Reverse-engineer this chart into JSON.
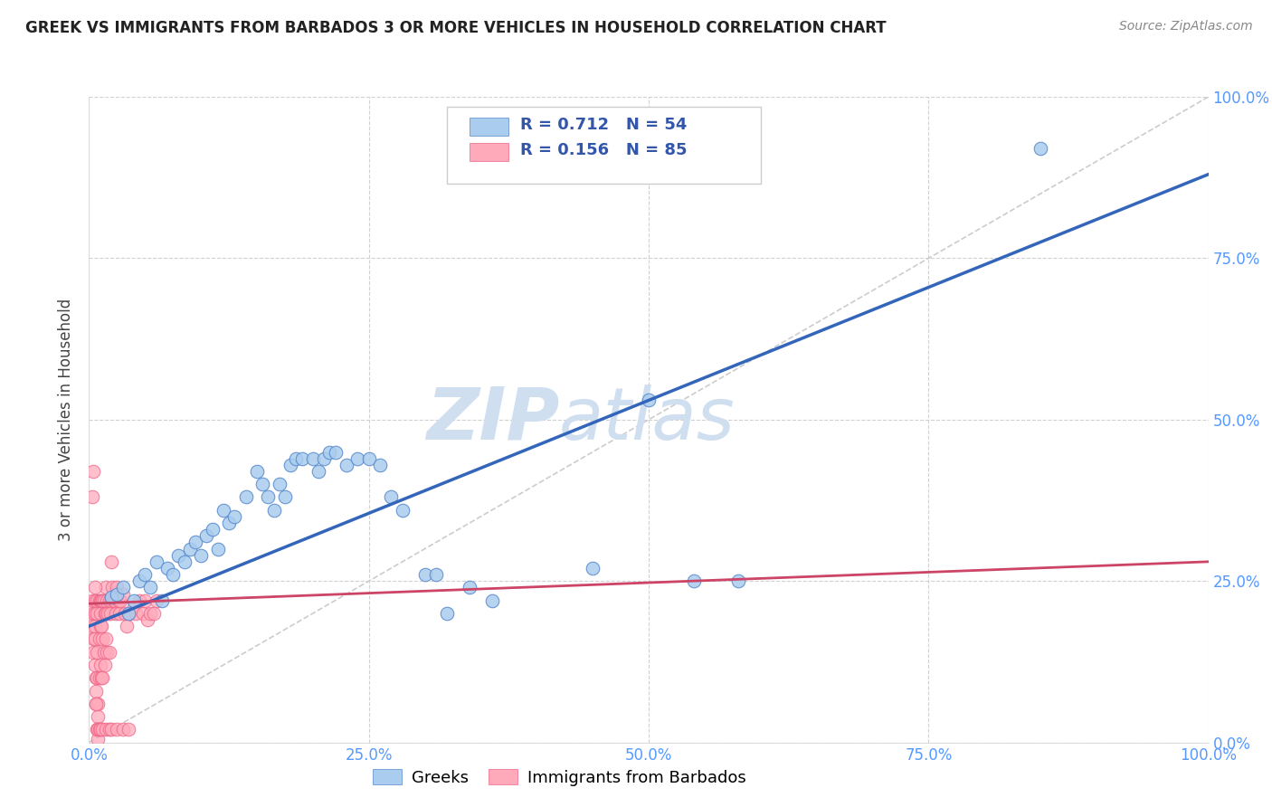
{
  "title": "GREEK VS IMMIGRANTS FROM BARBADOS 3 OR MORE VEHICLES IN HOUSEHOLD CORRELATION CHART",
  "source": "Source: ZipAtlas.com",
  "tick_color": "#5599ff",
  "ylabel": "3 or more Vehicles in Household",
  "xlim": [
    0,
    1.0
  ],
  "ylim": [
    0,
    1.0
  ],
  "x_ticks": [
    0.0,
    0.25,
    0.5,
    0.75,
    1.0
  ],
  "y_ticks": [
    0.0,
    0.25,
    0.5,
    0.75,
    1.0
  ],
  "x_tick_labels": [
    "0.0%",
    "25.0%",
    "50.0%",
    "75.0%",
    "100.0%"
  ],
  "y_tick_labels": [
    "0.0%",
    "25.0%",
    "50.0%",
    "75.0%",
    "100.0%"
  ],
  "greek_color": "#aaccee",
  "greek_edge_color": "#5588cc",
  "greek_line_color": "#3366bb",
  "barbados_color": "#ffaabb",
  "barbados_edge_color": "#ee6688",
  "barbados_line_color": "#cc4466",
  "greek_R": 0.712,
  "greek_N": 54,
  "barbados_R": 0.156,
  "barbados_N": 85,
  "legend_label_greek": "Greeks",
  "legend_label_barbados": "Immigrants from Barbados",
  "watermark_zip": "ZIP",
  "watermark_atlas": "atlas",
  "watermark_color": "#d0dff0",
  "greek_x": [
    0.02,
    0.025,
    0.03,
    0.035,
    0.04,
    0.045,
    0.05,
    0.055,
    0.06,
    0.065,
    0.07,
    0.075,
    0.08,
    0.085,
    0.09,
    0.095,
    0.1,
    0.105,
    0.11,
    0.115,
    0.12,
    0.125,
    0.13,
    0.14,
    0.15,
    0.155,
    0.16,
    0.165,
    0.17,
    0.175,
    0.18,
    0.185,
    0.19,
    0.2,
    0.205,
    0.21,
    0.215,
    0.22,
    0.23,
    0.24,
    0.25,
    0.26,
    0.27,
    0.28,
    0.3,
    0.31,
    0.32,
    0.34,
    0.36,
    0.45,
    0.5,
    0.54,
    0.58,
    0.85
  ],
  "greek_y": [
    0.225,
    0.23,
    0.24,
    0.2,
    0.22,
    0.25,
    0.26,
    0.24,
    0.28,
    0.22,
    0.27,
    0.26,
    0.29,
    0.28,
    0.3,
    0.31,
    0.29,
    0.32,
    0.33,
    0.3,
    0.36,
    0.34,
    0.35,
    0.38,
    0.42,
    0.4,
    0.38,
    0.36,
    0.4,
    0.38,
    0.43,
    0.44,
    0.44,
    0.44,
    0.42,
    0.44,
    0.45,
    0.45,
    0.43,
    0.44,
    0.44,
    0.43,
    0.38,
    0.36,
    0.26,
    0.26,
    0.2,
    0.24,
    0.22,
    0.27,
    0.53,
    0.25,
    0.25,
    0.92
  ],
  "barbados_x": [
    0.003,
    0.003,
    0.004,
    0.004,
    0.004,
    0.005,
    0.005,
    0.005,
    0.005,
    0.005,
    0.006,
    0.006,
    0.006,
    0.007,
    0.007,
    0.007,
    0.007,
    0.008,
    0.008,
    0.008,
    0.008,
    0.009,
    0.009,
    0.009,
    0.01,
    0.01,
    0.01,
    0.01,
    0.011,
    0.011,
    0.011,
    0.012,
    0.012,
    0.012,
    0.013,
    0.013,
    0.014,
    0.014,
    0.015,
    0.015,
    0.015,
    0.016,
    0.016,
    0.017,
    0.018,
    0.018,
    0.019,
    0.02,
    0.02,
    0.021,
    0.022,
    0.023,
    0.024,
    0.025,
    0.026,
    0.027,
    0.028,
    0.03,
    0.032,
    0.034,
    0.036,
    0.04,
    0.042,
    0.045,
    0.048,
    0.05,
    0.052,
    0.055,
    0.058,
    0.06,
    0.003,
    0.004,
    0.005,
    0.006,
    0.007,
    0.008,
    0.009,
    0.01,
    0.012,
    0.015,
    0.018,
    0.02,
    0.025,
    0.03,
    0.035
  ],
  "barbados_y": [
    0.22,
    0.18,
    0.16,
    0.2,
    0.14,
    0.22,
    0.2,
    0.18,
    0.16,
    0.12,
    0.1,
    0.08,
    0.06,
    0.22,
    0.2,
    0.14,
    0.1,
    0.06,
    0.04,
    0.02,
    0.005,
    0.22,
    0.16,
    0.1,
    0.22,
    0.2,
    0.18,
    0.12,
    0.22,
    0.18,
    0.1,
    0.22,
    0.16,
    0.1,
    0.22,
    0.14,
    0.2,
    0.12,
    0.24,
    0.2,
    0.16,
    0.22,
    0.14,
    0.2,
    0.22,
    0.14,
    0.2,
    0.28,
    0.22,
    0.24,
    0.22,
    0.22,
    0.2,
    0.24,
    0.22,
    0.2,
    0.22,
    0.23,
    0.2,
    0.18,
    0.2,
    0.21,
    0.2,
    0.22,
    0.2,
    0.22,
    0.19,
    0.2,
    0.2,
    0.22,
    0.38,
    0.42,
    0.24,
    0.06,
    0.02,
    0.02,
    0.02,
    0.02,
    0.02,
    0.02,
    0.02,
    0.02,
    0.02,
    0.02,
    0.02
  ]
}
